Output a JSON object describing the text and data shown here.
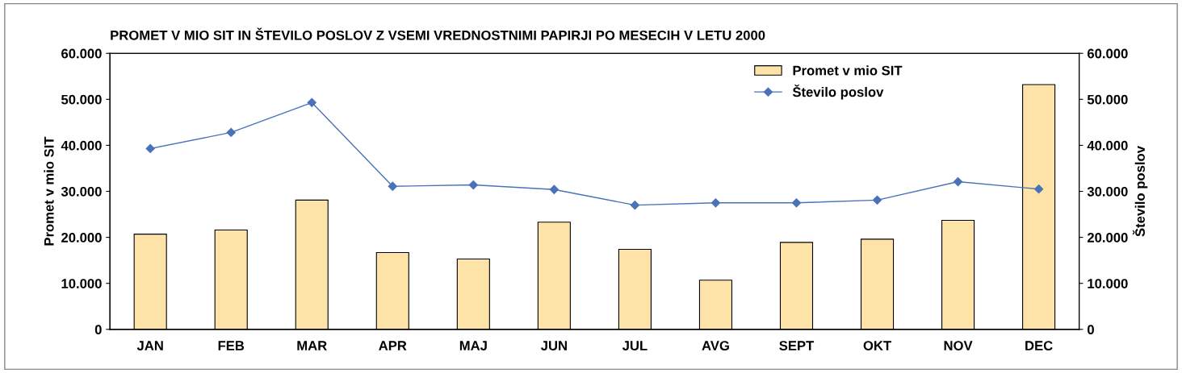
{
  "chart_data": {
    "type": "bar",
    "title": "PROMET V MIO SIT IN ŠTEVILO POSLOV Z VSEMI VREDNOSTNIMI PAPIRJI PO MESECIH V LETU 2000",
    "ylabel": "Promet v mio SIT",
    "y2label": "Število poslov",
    "categories": [
      "JAN",
      "FEB",
      "MAR",
      "APR",
      "MAJ",
      "JUN",
      "JUL",
      "AVG",
      "SEPT",
      "OKT",
      "NOV",
      "DEC"
    ],
    "series": [
      {
        "name": "Promet v mio SIT",
        "color": "#fde3a7",
        "values": [
          20700,
          21600,
          28100,
          16700,
          15300,
          23300,
          17400,
          10700,
          18900,
          19600,
          23700,
          53200
        ]
      },
      {
        "name": "Število poslov",
        "type": "line",
        "axis": "y2",
        "color": "#4a72b8",
        "marker": "diamond",
        "values": [
          39300,
          42800,
          49300,
          31100,
          31400,
          30400,
          27000,
          27500,
          27500,
          28100,
          32100,
          30500
        ]
      }
    ],
    "ylim": [
      0,
      60000
    ],
    "yticks": [
      0,
      {
        "value": 10000,
        "label": "10.000"
      },
      {
        "value": 20000,
        "label": "20.000"
      },
      {
        "value": 30000,
        "label": "30.000"
      },
      {
        "value": 40000,
        "label": "40.000"
      },
      {
        "value": 50000,
        "label": "50.000"
      },
      {
        "value": 60000,
        "label": "60.000"
      }
    ],
    "y2lim": [
      0,
      60000
    ],
    "y2ticks": [
      0,
      {
        "value": 10000,
        "label": "10.000"
      },
      {
        "value": 20000,
        "label": "20.000"
      },
      {
        "value": 30000,
        "label": "30.000"
      },
      {
        "value": 40000,
        "label": "40.000"
      },
      {
        "value": 50000,
        "label": "50.000"
      },
      {
        "value": 60000,
        "label": "60.000"
      }
    ],
    "grid": false,
    "legend": "top right"
  }
}
